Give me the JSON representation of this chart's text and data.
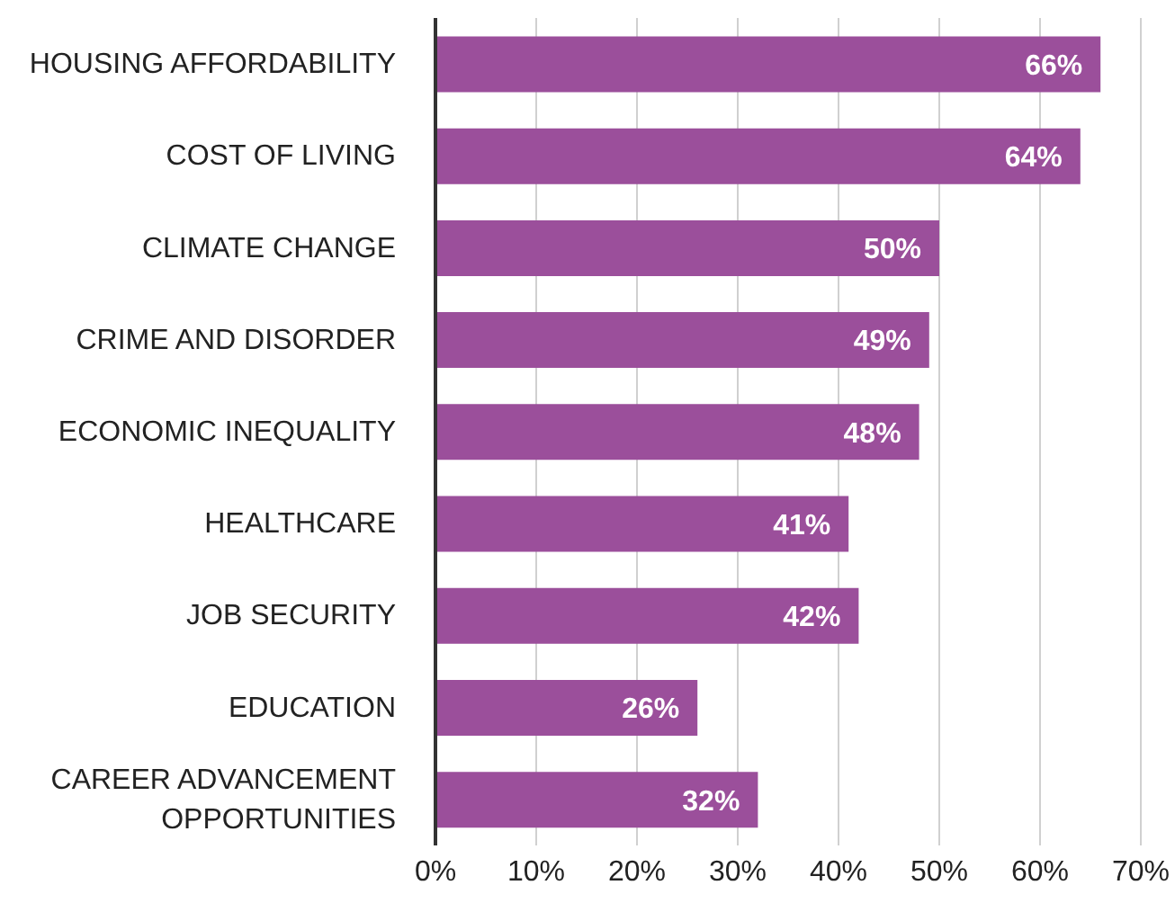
{
  "chart_data": {
    "type": "bar",
    "orientation": "horizontal",
    "categories": [
      "HOUSING AFFORDABILITY",
      "COST OF LIVING",
      "CLIMATE CHANGE",
      "CRIME AND DISORDER",
      "ECONOMIC INEQUALITY",
      "HEALTHCARE",
      "JOB SECURITY",
      "EDUCATION",
      "CAREER ADVANCEMENT OPPORTUNITIES"
    ],
    "values": [
      66,
      64,
      50,
      49,
      48,
      41,
      42,
      26,
      32
    ],
    "value_labels": [
      "66%",
      "64%",
      "50%",
      "49%",
      "48%",
      "41%",
      "42%",
      "26%",
      "32%"
    ],
    "color": "#9b4f9b",
    "xlim": [
      0,
      70
    ],
    "xticks": [
      {
        "value": 0,
        "label": "0%"
      },
      {
        "value": 10,
        "label": "10%"
      },
      {
        "value": 20,
        "label": "20%"
      },
      {
        "value": 30,
        "label": "30%"
      },
      {
        "value": 40,
        "label": "40%"
      },
      {
        "value": 50,
        "label": "50%"
      },
      {
        "value": 60,
        "label": "60%"
      },
      {
        "value": 70,
        "label": "70%"
      }
    ],
    "grid": "x",
    "legend": false
  }
}
